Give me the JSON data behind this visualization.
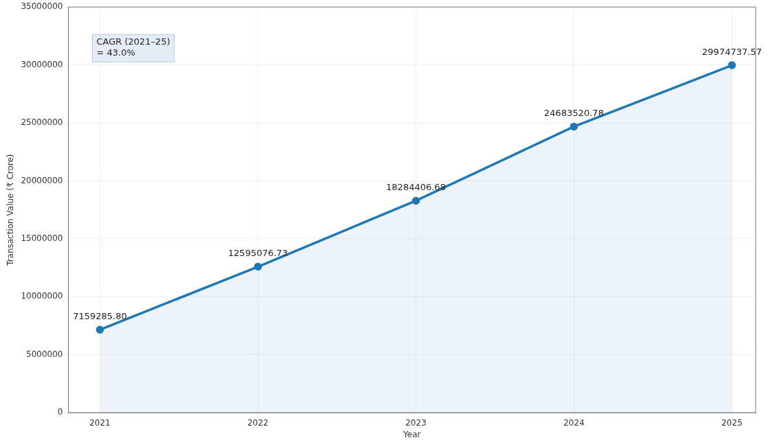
{
  "chart_data": {
    "type": "area",
    "xlabel": "Year",
    "ylabel": "Transaction Value (₹ Crore)",
    "x": [
      2021,
      2022,
      2023,
      2024,
      2025
    ],
    "series": [
      {
        "color": "#1f77b4",
        "values": [
          7159285.8,
          12595076.73,
          18284406.68,
          24683520.78,
          29974737.57
        ],
        "value_labels": [
          "7159285.80",
          "12595076.73",
          "18284406.68",
          "24683520.78",
          "29974737.57"
        ]
      }
    ],
    "xlim": [
      2020.8,
      2025.15
    ],
    "xticks": [
      2021,
      2022,
      2023,
      2024,
      2025
    ],
    "ylim": [
      0,
      35000000
    ],
    "yticks": [
      0,
      5000000,
      10000000,
      15000000,
      20000000,
      25000000,
      30000000,
      35000000
    ],
    "grid": true,
    "marker": "circle",
    "line_style": "solid",
    "legend": false,
    "annotations": [
      "CAGR (2021–25)\n= 43.0%"
    ]
  }
}
